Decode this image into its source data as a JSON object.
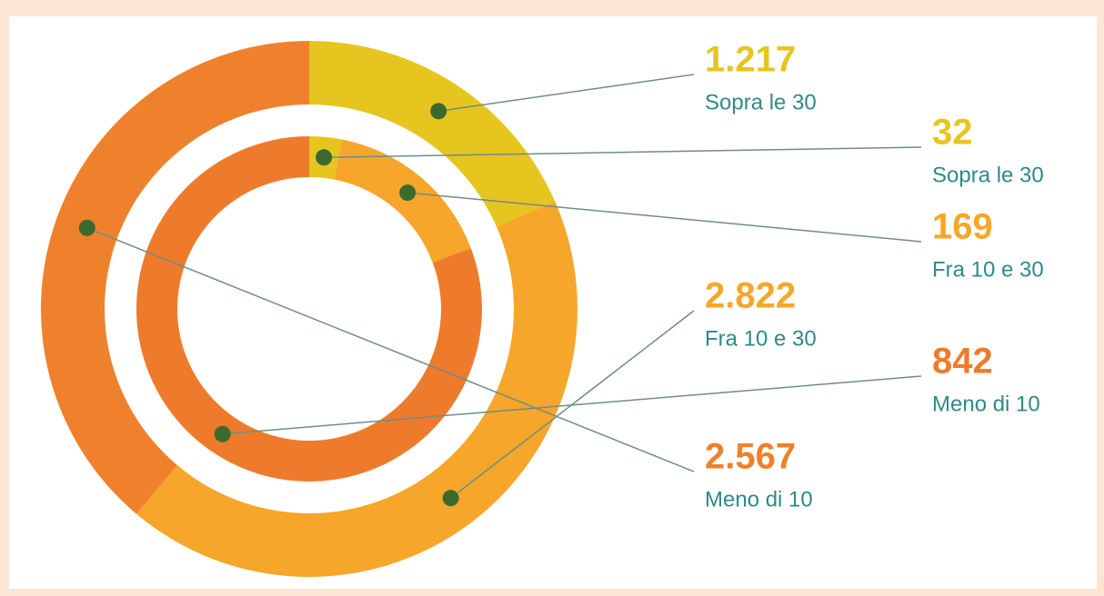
{
  "chart_data": [
    {
      "type": "donut",
      "ring": "outer",
      "categories": [
        "Sopra le 30",
        "Fra 10 e 30",
        "Meno di 10"
      ],
      "values": [
        1217,
        2822,
        2567
      ],
      "value_labels": [
        "1.217",
        "2.822",
        "2.567"
      ],
      "colors": [
        "#e6c51f",
        "#f6a62a",
        "#f0812c"
      ]
    },
    {
      "type": "donut",
      "ring": "inner",
      "categories": [
        "Sopra le 30",
        "Fra 10 e 30",
        "Meno di 10"
      ],
      "values": [
        32,
        169,
        842
      ],
      "value_labels": [
        "32",
        "169",
        "842"
      ],
      "colors": [
        "#e6c51f",
        "#f6a62a",
        "#ee7b2b"
      ]
    }
  ]
}
